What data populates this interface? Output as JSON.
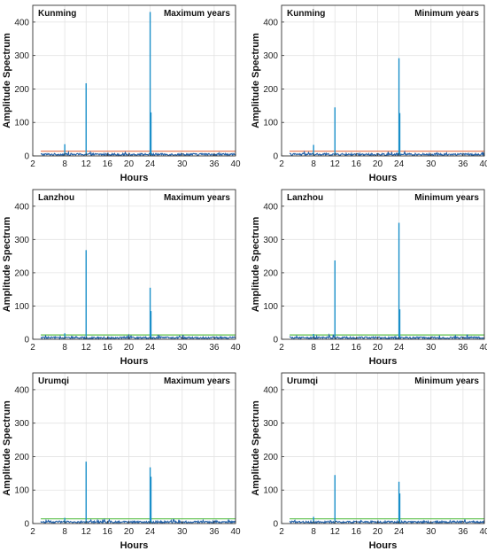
{
  "chart_data": [
    {
      "type": "line",
      "station": "Kunming",
      "period": "Maximum years",
      "xlabel": "Hours",
      "ylabel": "Amplitude Spectrum",
      "xlim": [
        2,
        40
      ],
      "ylim": [
        0,
        450
      ],
      "xticks": [
        2,
        8,
        12,
        16,
        20,
        24,
        30,
        36,
        40
      ],
      "yticks": [
        0,
        100,
        200,
        300,
        400
      ],
      "grid": true,
      "threshold": 14,
      "threshold_color": "#e8734a",
      "spectrum_color": "#1f5fa8",
      "peaks": [
        {
          "x": 8,
          "y": 35
        },
        {
          "x": 12,
          "y": 217
        },
        {
          "x": 24,
          "y": 430
        },
        {
          "x": 24.15,
          "y": 130
        }
      ]
    },
    {
      "type": "line",
      "station": "Kunming",
      "period": "Minimum years",
      "xlabel": "Hours",
      "ylabel": "Amplitude Spectrum",
      "xlim": [
        2,
        40
      ],
      "ylim": [
        0,
        450
      ],
      "xticks": [
        2,
        8,
        12,
        16,
        20,
        24,
        30,
        36,
        40
      ],
      "yticks": [
        0,
        100,
        200,
        300,
        400
      ],
      "grid": true,
      "threshold": 14,
      "threshold_color": "#e8734a",
      "spectrum_color": "#1f5fa8",
      "peaks": [
        {
          "x": 8,
          "y": 33
        },
        {
          "x": 12,
          "y": 145
        },
        {
          "x": 24,
          "y": 292
        },
        {
          "x": 24.15,
          "y": 128
        }
      ]
    },
    {
      "type": "line",
      "station": "Lanzhou",
      "period": "Maximum years",
      "xlabel": "Hours",
      "ylabel": "Amplitude Spectrum",
      "xlim": [
        2,
        40
      ],
      "ylim": [
        0,
        450
      ],
      "xticks": [
        2,
        8,
        12,
        16,
        20,
        24,
        30,
        36,
        40
      ],
      "yticks": [
        0,
        100,
        200,
        300,
        400
      ],
      "grid": true,
      "threshold": 13,
      "threshold_color": "#5cbf4a",
      "spectrum_color": "#1f5fa8",
      "peaks": [
        {
          "x": 8,
          "y": 18
        },
        {
          "x": 12,
          "y": 268
        },
        {
          "x": 24,
          "y": 155
        },
        {
          "x": 24.15,
          "y": 85
        }
      ]
    },
    {
      "type": "line",
      "station": "Lanzhou",
      "period": "Minimum years",
      "xlabel": "Hours",
      "ylabel": "Amplitude Spectrum",
      "xlim": [
        2,
        40
      ],
      "ylim": [
        0,
        450
      ],
      "xticks": [
        2,
        8,
        12,
        16,
        20,
        24,
        30,
        36,
        40
      ],
      "yticks": [
        0,
        100,
        200,
        300,
        400
      ],
      "grid": true,
      "threshold": 13,
      "threshold_color": "#5cbf4a",
      "spectrum_color": "#1f5fa8",
      "peaks": [
        {
          "x": 8,
          "y": 16
        },
        {
          "x": 12,
          "y": 237
        },
        {
          "x": 24,
          "y": 350
        },
        {
          "x": 24.15,
          "y": 90
        }
      ]
    },
    {
      "type": "line",
      "station": "Urumqi",
      "period": "Maximum years",
      "xlabel": "Hours",
      "ylabel": "Amplitude Spectrum",
      "xlim": [
        2,
        40
      ],
      "ylim": [
        0,
        450
      ],
      "xticks": [
        2,
        8,
        12,
        16,
        20,
        24,
        30,
        36,
        40
      ],
      "yticks": [
        0,
        100,
        200,
        300,
        400
      ],
      "grid": true,
      "threshold": 14,
      "threshold_color": "#5cbf4a",
      "spectrum_color": "#1f5fa8",
      "peaks": [
        {
          "x": 8,
          "y": 17
        },
        {
          "x": 12,
          "y": 185
        },
        {
          "x": 24,
          "y": 168
        },
        {
          "x": 24.15,
          "y": 140
        }
      ]
    },
    {
      "type": "line",
      "station": "Urumqi",
      "period": "Minimum years",
      "xlabel": "Hours",
      "ylabel": "Amplitude Spectrum",
      "xlim": [
        2,
        40
      ],
      "ylim": [
        0,
        450
      ],
      "xticks": [
        2,
        8,
        12,
        16,
        20,
        24,
        30,
        36,
        40
      ],
      "yticks": [
        0,
        100,
        200,
        300,
        400
      ],
      "grid": true,
      "threshold": 14,
      "threshold_color": "#5cbf4a",
      "spectrum_color": "#1f5fa8",
      "peaks": [
        {
          "x": 8,
          "y": 20
        },
        {
          "x": 12,
          "y": 145
        },
        {
          "x": 24,
          "y": 125
        },
        {
          "x": 24.15,
          "y": 90
        }
      ]
    }
  ]
}
